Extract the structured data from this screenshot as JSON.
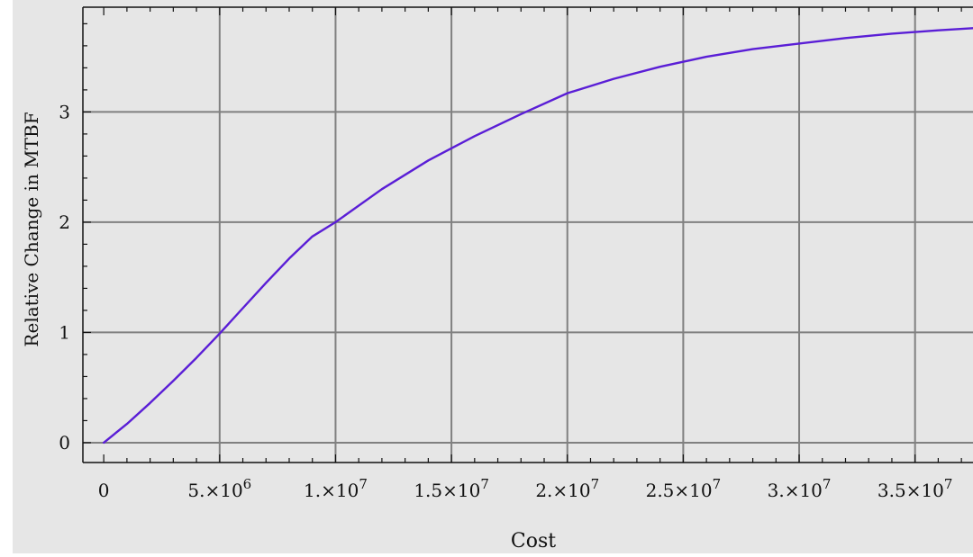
{
  "chart_data": {
    "type": "line",
    "xlabel": "Cost",
    "ylabel": "Relative Change in MTBF",
    "xlim": [
      -900000,
      37500000
    ],
    "ylim": [
      -0.18,
      3.95
    ],
    "grid": true,
    "x_ticks": [
      {
        "value": 0,
        "label": "0"
      },
      {
        "value": 5000000,
        "label": "5.×10",
        "exp": "6"
      },
      {
        "value": 10000000,
        "label": "1.×10",
        "exp": "7"
      },
      {
        "value": 15000000,
        "label": "1.5×10",
        "exp": "7"
      },
      {
        "value": 20000000,
        "label": "2.×10",
        "exp": "7"
      },
      {
        "value": 25000000,
        "label": "2.5×10",
        "exp": "7"
      },
      {
        "value": 30000000,
        "label": "3.×10",
        "exp": "7"
      },
      {
        "value": 35000000,
        "label": "3.5×10",
        "exp": "7"
      }
    ],
    "y_ticks": [
      {
        "value": 0,
        "label": "0"
      },
      {
        "value": 1,
        "label": "1"
      },
      {
        "value": 2,
        "label": "2"
      },
      {
        "value": 3,
        "label": "3"
      }
    ],
    "series": [
      {
        "color": "#5a1ed6",
        "x": [
          0,
          1000000,
          2000000,
          3000000,
          4000000,
          5000000,
          6000000,
          7000000,
          8000000,
          9000000,
          10000000,
          12000000,
          14000000,
          16000000,
          18000000,
          20000000,
          22000000,
          24000000,
          26000000,
          28000000,
          30000000,
          32000000,
          34000000,
          36000000,
          37500000
        ],
        "y": [
          0,
          0.17,
          0.36,
          0.56,
          0.77,
          0.99,
          1.22,
          1.45,
          1.67,
          1.87,
          2.0,
          2.3,
          2.56,
          2.78,
          2.98,
          3.17,
          3.3,
          3.41,
          3.5,
          3.57,
          3.62,
          3.67,
          3.71,
          3.74,
          3.76
        ]
      }
    ]
  },
  "colors": {
    "panel": "#e6e6e6",
    "plot_area": "#e6e6e6",
    "grid": "#808080",
    "axis": "#111111",
    "line": "#5a1ed6"
  }
}
